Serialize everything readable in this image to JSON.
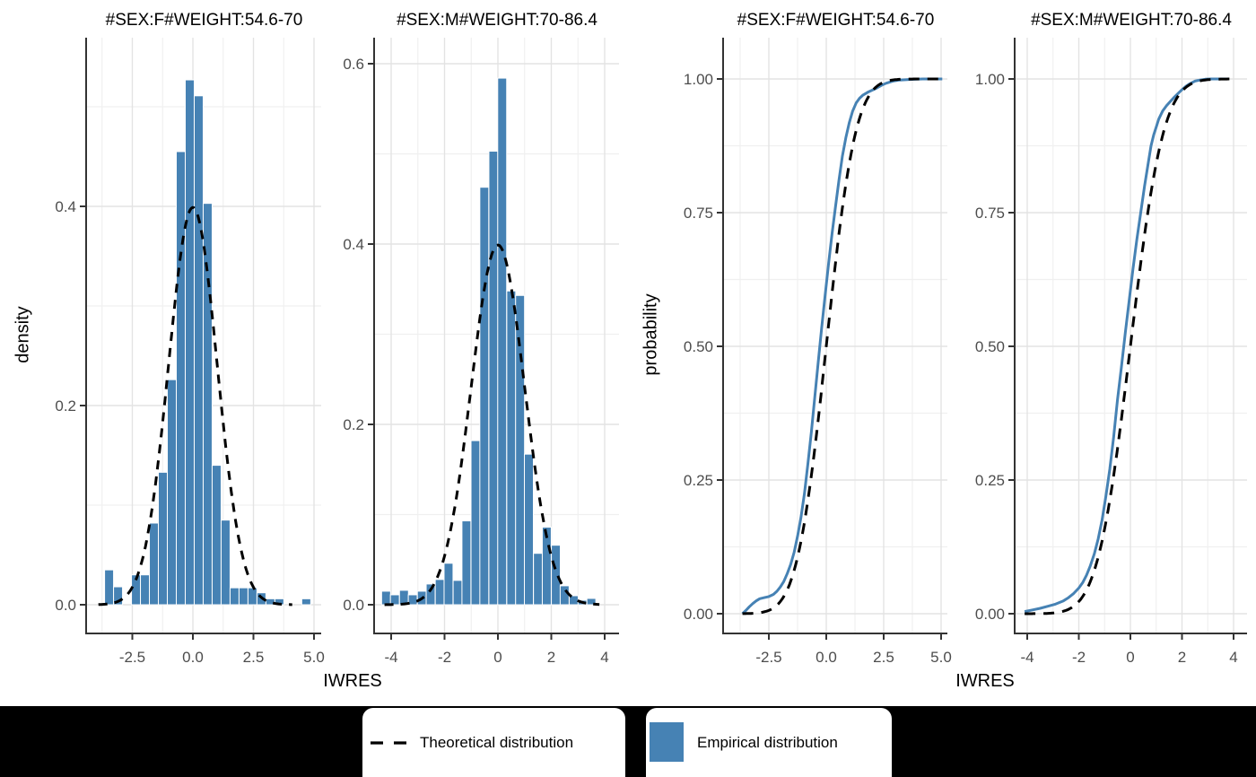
{
  "colors": {
    "empirical": "#4682B4",
    "theoretical": "#000000",
    "grid_major": "#E3E3E3",
    "grid_minor": "#F0F0F0",
    "axis_line": "#333333",
    "tick_label": "#4D4D4D",
    "text": "#000000",
    "legend_background": "#000000",
    "legend_item_background": "#FFFFFF"
  },
  "axis_titles": {
    "x_hist": "IWRES",
    "x_ecdf": "IWRES",
    "y_hist": "density",
    "y_ecdf": "probability"
  },
  "legend": {
    "items": [
      {
        "label": "Theoretical distribution",
        "key": "dashed-line"
      },
      {
        "label": "Empirical distribution",
        "key": "filled-square"
      }
    ]
  },
  "chart_data": [
    {
      "id": "hist-sex-f",
      "type": "histogram",
      "facet_title": "#SEX:F#WEIGHT:54.6-70",
      "xlabel": "IWRES",
      "ylabel": "density",
      "x_ticks": [
        -2.5,
        0,
        2.5,
        5
      ],
      "x_tick_labels": [
        "-2.5",
        "0.0",
        "2.5",
        "5.0"
      ],
      "y_ticks": [
        0,
        0.2,
        0.4
      ],
      "y_tick_labels": [
        "0.0",
        "0.2",
        "0.4"
      ],
      "xlim": [
        -4.37,
        5.3
      ],
      "ylim": [
        0,
        0.57
      ],
      "bin_width": 0.37,
      "bins": [
        [
          -3.46,
          0.035
        ],
        [
          -3.09,
          0.018
        ],
        [
          -2.35,
          0.03
        ],
        [
          -1.98,
          0.03
        ],
        [
          -1.61,
          0.082
        ],
        [
          -1.24,
          0.133
        ],
        [
          -0.87,
          0.226
        ],
        [
          -0.5,
          0.455
        ],
        [
          -0.13,
          0.527
        ],
        [
          0.24,
          0.511
        ],
        [
          0.61,
          0.403
        ],
        [
          0.98,
          0.14
        ],
        [
          1.35,
          0.085
        ],
        [
          1.72,
          0.017
        ],
        [
          2.09,
          0.017
        ],
        [
          2.46,
          0.017
        ],
        [
          2.83,
          0.012
        ],
        [
          3.2,
          0.006
        ],
        [
          3.57,
          0.006
        ],
        [
          4.68,
          0.006
        ]
      ],
      "theoretical": {
        "dist": "normal-pdf",
        "mean": 0,
        "sd": 1,
        "range": [
          -3.9,
          4.1
        ]
      }
    },
    {
      "id": "hist-sex-m",
      "type": "histogram",
      "facet_title": "#SEX:M#WEIGHT:70-86.4",
      "xlabel": "IWRES",
      "ylabel": "density",
      "x_ticks": [
        -4,
        -2,
        0,
        2,
        4
      ],
      "x_tick_labels": [
        "-4",
        "-2",
        "0",
        "2",
        "4"
      ],
      "y_ticks": [
        0,
        0.2,
        0.4,
        0.6
      ],
      "y_tick_labels": [
        "0.0",
        "0.2",
        "0.4",
        "0.6"
      ],
      "xlim": [
        -4.6,
        4.54
      ],
      "ylim": [
        0,
        0.63
      ],
      "bin_width": 0.335,
      "bins": [
        [
          -4.19,
          0.015
        ],
        [
          -3.86,
          0.011
        ],
        [
          -3.52,
          0.016
        ],
        [
          -3.19,
          0.011
        ],
        [
          -2.85,
          0.015
        ],
        [
          -2.52,
          0.023
        ],
        [
          -2.18,
          0.028
        ],
        [
          -1.85,
          0.046
        ],
        [
          -1.51,
          0.027
        ],
        [
          -1.18,
          0.093
        ],
        [
          -0.84,
          0.182
        ],
        [
          -0.51,
          0.463
        ],
        [
          -0.17,
          0.503
        ],
        [
          0.16,
          0.584
        ],
        [
          0.5,
          0.348
        ],
        [
          0.83,
          0.343
        ],
        [
          1.16,
          0.167
        ],
        [
          1.5,
          0.057
        ],
        [
          1.83,
          0.086
        ],
        [
          2.17,
          0.066
        ],
        [
          2.5,
          0.021
        ],
        [
          2.84,
          0.01
        ],
        [
          3.17,
          0.005
        ],
        [
          3.5,
          0.007
        ]
      ],
      "theoretical": {
        "dist": "normal-pdf",
        "mean": 0,
        "sd": 1,
        "range": [
          -4.25,
          3.8
        ]
      }
    },
    {
      "id": "ecdf-sex-f",
      "type": "ecdf",
      "facet_title": "#SEX:F#WEIGHT:54.6-70",
      "xlabel": "IWRES",
      "ylabel": "probability",
      "x_ticks": [
        -2.5,
        0,
        2.5,
        5
      ],
      "x_tick_labels": [
        "-2.5",
        "0.0",
        "2.5",
        "5.0"
      ],
      "y_ticks": [
        0,
        0.25,
        0.5,
        0.75,
        1
      ],
      "y_tick_labels": [
        "0.00",
        "0.25",
        "0.50",
        "0.75",
        "1.00"
      ],
      "xlim": [
        -4.45,
        5.27
      ],
      "ylim": [
        0,
        1
      ],
      "points": [
        [
          -3.65,
          0.0
        ],
        [
          -3.5,
          0.006
        ],
        [
          -3.35,
          0.013
        ],
        [
          -3.2,
          0.019
        ],
        [
          -3.05,
          0.024
        ],
        [
          -2.9,
          0.028
        ],
        [
          -2.7,
          0.03
        ],
        [
          -2.5,
          0.032
        ],
        [
          -2.3,
          0.036
        ],
        [
          -2.15,
          0.042
        ],
        [
          -2.0,
          0.05
        ],
        [
          -1.85,
          0.06
        ],
        [
          -1.7,
          0.075
        ],
        [
          -1.55,
          0.092
        ],
        [
          -1.4,
          0.115
        ],
        [
          -1.25,
          0.145
        ],
        [
          -1.1,
          0.18
        ],
        [
          -0.95,
          0.225
        ],
        [
          -0.8,
          0.28
        ],
        [
          -0.65,
          0.34
        ],
        [
          -0.5,
          0.405
        ],
        [
          -0.35,
          0.47
        ],
        [
          -0.2,
          0.535
        ],
        [
          -0.05,
          0.595
        ],
        [
          0.1,
          0.655
        ],
        [
          0.25,
          0.71
        ],
        [
          0.4,
          0.76
        ],
        [
          0.55,
          0.81
        ],
        [
          0.7,
          0.855
        ],
        [
          0.85,
          0.89
        ],
        [
          1.0,
          0.918
        ],
        [
          1.15,
          0.94
        ],
        [
          1.3,
          0.955
        ],
        [
          1.45,
          0.964
        ],
        [
          1.6,
          0.97
        ],
        [
          1.8,
          0.975
        ],
        [
          2.0,
          0.979
        ],
        [
          2.2,
          0.983
        ],
        [
          2.4,
          0.988
        ],
        [
          2.6,
          0.992
        ],
        [
          2.9,
          0.996
        ],
        [
          3.2,
          0.998
        ],
        [
          3.6,
          0.999
        ],
        [
          4.2,
          1.0
        ],
        [
          5.05,
          1.0
        ]
      ],
      "theoretical": {
        "dist": "normal-cdf",
        "mean": 0,
        "sd": 1,
        "range": [
          -3.65,
          5.05
        ]
      }
    },
    {
      "id": "ecdf-sex-m",
      "type": "ecdf",
      "facet_title": "#SEX:M#WEIGHT:70-86.4",
      "xlabel": "IWRES",
      "ylabel": "probability",
      "x_ticks": [
        -4,
        -2,
        0,
        2,
        4
      ],
      "x_tick_labels": [
        "-4",
        "-2",
        "0",
        "2",
        "4"
      ],
      "y_ticks": [
        0,
        0.25,
        0.5,
        0.75,
        1
      ],
      "y_tick_labels": [
        "0.00",
        "0.25",
        "0.50",
        "0.75",
        "1.00"
      ],
      "xlim": [
        -4.45,
        4.52
      ],
      "ylim": [
        0,
        1
      ],
      "points": [
        [
          -4.1,
          0.004
        ],
        [
          -3.8,
          0.007
        ],
        [
          -3.5,
          0.01
        ],
        [
          -3.2,
          0.014
        ],
        [
          -2.9,
          0.018
        ],
        [
          -2.6,
          0.024
        ],
        [
          -2.4,
          0.03
        ],
        [
          -2.2,
          0.038
        ],
        [
          -2.0,
          0.048
        ],
        [
          -1.85,
          0.058
        ],
        [
          -1.7,
          0.072
        ],
        [
          -1.55,
          0.09
        ],
        [
          -1.4,
          0.112
        ],
        [
          -1.25,
          0.14
        ],
        [
          -1.1,
          0.175
        ],
        [
          -0.95,
          0.22
        ],
        [
          -0.8,
          0.27
        ],
        [
          -0.65,
          0.33
        ],
        [
          -0.5,
          0.4
        ],
        [
          -0.35,
          0.46
        ],
        [
          -0.2,
          0.525
        ],
        [
          -0.05,
          0.585
        ],
        [
          0.1,
          0.645
        ],
        [
          0.25,
          0.7
        ],
        [
          0.4,
          0.75
        ],
        [
          0.55,
          0.8
        ],
        [
          0.7,
          0.845
        ],
        [
          0.8,
          0.875
        ],
        [
          0.9,
          0.895
        ],
        [
          1.0,
          0.91
        ],
        [
          1.1,
          0.925
        ],
        [
          1.25,
          0.94
        ],
        [
          1.4,
          0.95
        ],
        [
          1.55,
          0.958
        ],
        [
          1.7,
          0.966
        ],
        [
          1.85,
          0.973
        ],
        [
          2.0,
          0.98
        ],
        [
          2.15,
          0.986
        ],
        [
          2.3,
          0.991
        ],
        [
          2.5,
          0.996
        ],
        [
          2.7,
          0.998
        ],
        [
          2.9,
          0.9995
        ],
        [
          3.1,
          1.0
        ],
        [
          3.8,
          1.0
        ]
      ],
      "theoretical": {
        "dist": "normal-cdf",
        "mean": 0,
        "sd": 1,
        "range": [
          -4.1,
          3.85
        ]
      }
    }
  ]
}
